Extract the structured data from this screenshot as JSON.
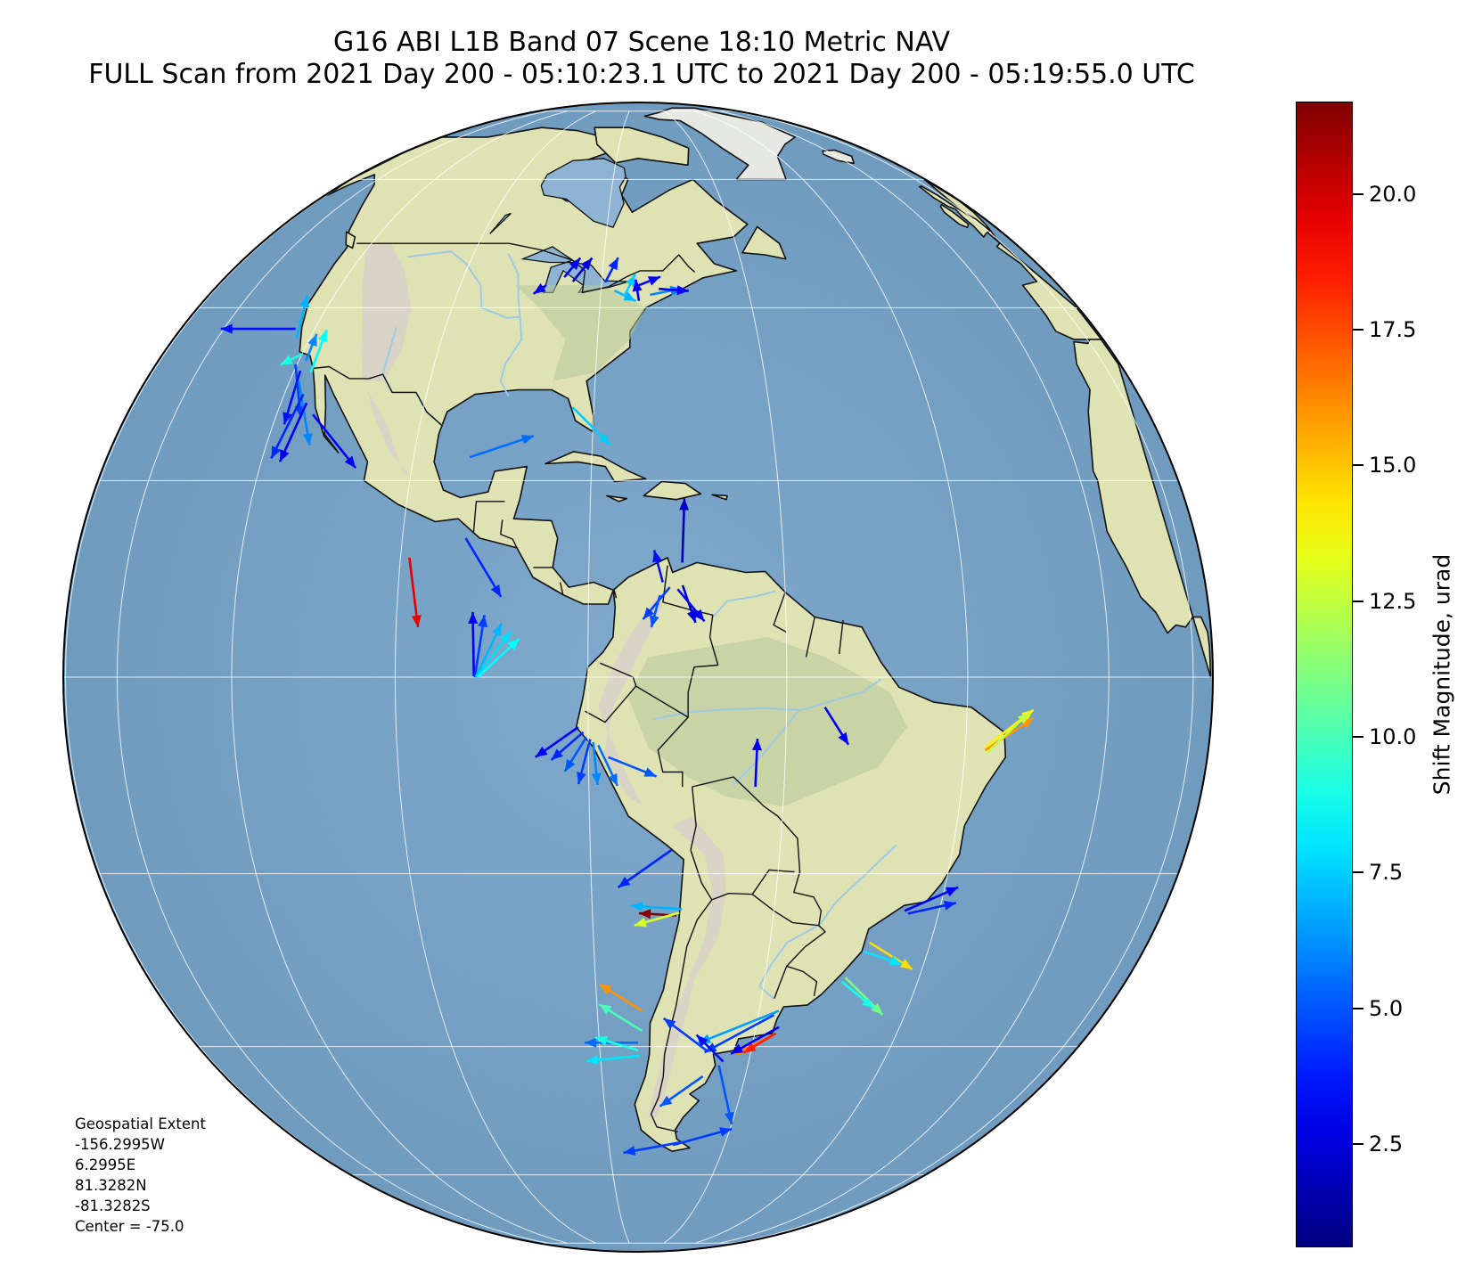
{
  "title": {
    "line1": "G16 ABI L1B Band 07 Scene 18:10 Metric NAV",
    "line2": "FULL Scan from 2021 Day 200 - 05:10:23.1 UTC to 2021 Day 200 - 05:19:55.0 UTC"
  },
  "extent_note": {
    "heading": "Geospatial Extent",
    "west": "-156.2995W",
    "east": "6.2995E",
    "north": "81.3282N",
    "south": "-81.3282S",
    "center": "Center = -75.0"
  },
  "colorbar": {
    "label": "Shift Magnitude, urad",
    "min": 0.6,
    "max": 21.7,
    "colormap": "jet",
    "ticks": [
      {
        "value": 2.5,
        "label": "2.5"
      },
      {
        "value": 5.0,
        "label": "5.0"
      },
      {
        "value": 7.5,
        "label": "7.5"
      },
      {
        "value": 10.0,
        "label": "10.0"
      },
      {
        "value": 12.5,
        "label": "12.5"
      },
      {
        "value": 15.0,
        "label": "15.0"
      },
      {
        "value": 17.5,
        "label": "17.5"
      },
      {
        "value": 20.0,
        "label": "20.0"
      }
    ]
  },
  "colors": {
    "ocean": "#7aa5c9",
    "land": "#dfe3b4",
    "land_green": "#b7c99a",
    "mountain": "#d9d1c9",
    "border": "#111111",
    "river": "#9fc9e6",
    "grid": "#ffffff"
  },
  "projection": {
    "type": "geostationary",
    "satellite": "G16",
    "central_longitude": -75.0
  },
  "vectors": [
    {
      "lon": -87.6,
      "lat": 43.0,
      "dx": -1.2,
      "dy": -0.8,
      "mag": 3.0
    },
    {
      "lon": -85.3,
      "lat": 44.1,
      "dx": 1.5,
      "dy": 1.8,
      "mag": 3.0
    },
    {
      "lon": -84.0,
      "lat": 43.5,
      "dx": 1.8,
      "dy": 2.2,
      "mag": 2.5
    },
    {
      "lon": -79.5,
      "lat": 43.4,
      "dx": 1.2,
      "dy": 2.3,
      "mag": 4.0
    },
    {
      "lon": -78.2,
      "lat": 42.3,
      "dx": 2.0,
      "dy": -1.0,
      "mag": 7.0
    },
    {
      "lon": -75.6,
      "lat": 42.7,
      "dx": 2.5,
      "dy": 1.0,
      "mag": 3.0
    },
    {
      "lon": -76.8,
      "lat": 41.6,
      "dx": 1.0,
      "dy": 2.0,
      "mag": 7.5
    },
    {
      "lon": -74.9,
      "lat": 40.9,
      "dx": -0.3,
      "dy": 2.0,
      "mag": 3.0
    },
    {
      "lon": -73.4,
      "lat": 41.7,
      "dx": 3.0,
      "dy": 0.6,
      "mag": 6.0
    },
    {
      "lon": -72.2,
      "lat": 42.5,
      "dx": 2.8,
      "dy": -0.2,
      "mag": 3.0
    },
    {
      "lon": -123.5,
      "lat": 37.3,
      "dx": -7.0,
      "dy": 0.0,
      "mag": 3.5
    },
    {
      "lon": -122.4,
      "lat": 36.2,
      "dx": 1.0,
      "dy": 4.0,
      "mag": 7.0
    },
    {
      "lon": -120.0,
      "lat": 34.2,
      "dx": -2.0,
      "dy": -1.0,
      "mag": 9.0
    },
    {
      "lon": -118.8,
      "lat": 33.4,
      "dx": 1.0,
      "dy": 2.5,
      "mag": 6.0
    },
    {
      "lon": -120.3,
      "lat": 33.0,
      "dx": 0.5,
      "dy": -5.0,
      "mag": 4.5
    },
    {
      "lon": -119.0,
      "lat": 32.2,
      "dx": -1.5,
      "dy": -5.0,
      "mag": 3.5
    },
    {
      "lon": -117.2,
      "lat": 32.0,
      "dx": 1.5,
      "dy": 4.0,
      "mag": 8.5
    },
    {
      "lon": -118.5,
      "lat": 31.0,
      "dx": 1.0,
      "dy": -6.0,
      "mag": 6.0
    },
    {
      "lon": -117.0,
      "lat": 29.5,
      "dx": -3.0,
      "dy": -6.0,
      "mag": 4.0
    },
    {
      "lon": -116.0,
      "lat": 28.5,
      "dx": -2.5,
      "dy": -5.5,
      "mag": 3.0
    },
    {
      "lon": -114.5,
      "lat": 27.2,
      "dx": 4.0,
      "dy": -5.0,
      "mag": 3.0
    },
    {
      "lon": -93.5,
      "lat": 22.5,
      "dx": 6.0,
      "dy": 2.0,
      "mag": 5.5
    },
    {
      "lon": -82.4,
      "lat": 28.0,
      "dx": 3.5,
      "dy": -3.5,
      "mag": 7.5
    },
    {
      "lon": -99.0,
      "lat": 12.0,
      "dx": 0.8,
      "dy": -6.5,
      "mag": 19.5
    },
    {
      "lon": -93.0,
      "lat": 14.0,
      "dx": 3.3,
      "dy": -5.5,
      "mag": 4.0
    },
    {
      "lon": -70.5,
      "lat": 11.5,
      "dx": 0.2,
      "dy": 6.0,
      "mag": 2.0
    },
    {
      "lon": -72.5,
      "lat": 9.5,
      "dx": -0.8,
      "dy": 3.0,
      "mag": 3.5
    },
    {
      "lon": -71.8,
      "lat": 9.0,
      "dx": -2.5,
      "dy": -3.0,
      "mag": 4.5
    },
    {
      "lon": -71.0,
      "lat": 8.8,
      "dx": 2.5,
      "dy": -3.0,
      "mag": 3.0
    },
    {
      "lon": -70.5,
      "lat": 9.2,
      "dx": 1.2,
      "dy": -3.5,
      "mag": 2.5
    },
    {
      "lon": -72.8,
      "lat": 8.2,
      "dx": -0.8,
      "dy": -3.0,
      "mag": 5.0
    },
    {
      "lon": -91.6,
      "lat": 0.1,
      "dx": -0.1,
      "dy": 6.0,
      "mag": 3.0
    },
    {
      "lon": -91.5,
      "lat": 0.0,
      "dx": 0.9,
      "dy": 5.8,
      "mag": 4.5
    },
    {
      "lon": -91.4,
      "lat": 0.0,
      "dx": 2.4,
      "dy": 5.0,
      "mag": 7.0
    },
    {
      "lon": -91.3,
      "lat": 0.1,
      "dx": 3.2,
      "dy": 4.2,
      "mag": 7.8
    },
    {
      "lon": -91.2,
      "lat": 0.0,
      "dx": 3.9,
      "dy": 3.6,
      "mag": 8.5
    },
    {
      "lon": -81.0,
      "lat": -5.0,
      "dx": -4.0,
      "dy": -2.8,
      "mag": 3.0
    },
    {
      "lon": -80.5,
      "lat": -5.5,
      "dx": -3.0,
      "dy": -2.6,
      "mag": 4.0
    },
    {
      "lon": -80.2,
      "lat": -6.0,
      "dx": -2.0,
      "dy": -3.2,
      "mag": 5.0
    },
    {
      "lon": -79.8,
      "lat": -6.2,
      "dx": -1.1,
      "dy": -4.2,
      "mag": 4.5
    },
    {
      "lon": -79.5,
      "lat": -6.5,
      "dx": 0.4,
      "dy": -4.0,
      "mag": 6.0
    },
    {
      "lon": -79.0,
      "lat": -6.8,
      "dx": 1.8,
      "dy": -3.8,
      "mag": 5.5
    },
    {
      "lon": -78.0,
      "lat": -8.0,
      "dx": 4.5,
      "dy": -1.8,
      "mag": 5.0
    },
    {
      "lon": -56.0,
      "lat": -3.0,
      "dx": 2.2,
      "dy": -3.5,
      "mag": 3.0
    },
    {
      "lon": -63.0,
      "lat": -11.0,
      "dx": 0.2,
      "dy": 4.5,
      "mag": 3.0
    },
    {
      "lon": -71.5,
      "lat": -17.5,
      "dx": -5.0,
      "dy": -3.5,
      "mag": 4.0
    },
    {
      "lon": -70.8,
      "lat": -24.5,
      "dx": -3.5,
      "dy": 0.2,
      "mag": 21.5
    },
    {
      "lon": -70.5,
      "lat": -24.2,
      "dx": -4.2,
      "dy": -1.2,
      "mag": 13.0
    },
    {
      "lon": -70.2,
      "lat": -23.8,
      "dx": -4.8,
      "dy": 0.3,
      "mag": 7.0
    },
    {
      "lon": -37.5,
      "lat": -7.0,
      "dx": 4.5,
      "dy": 3.5,
      "mag": 14.0
    },
    {
      "lon": -37.5,
      "lat": -7.3,
      "dx": 4.5,
      "dy": 3.0,
      "mag": 16.0
    },
    {
      "lon": -37.3,
      "lat": -7.6,
      "dx": 4.0,
      "dy": 3.8,
      "mag": 12.5
    },
    {
      "lon": -44.5,
      "lat": -24.0,
      "dx": 5.0,
      "dy": 2.2,
      "mag": 3.0
    },
    {
      "lon": -44.0,
      "lat": -24.3,
      "dx": 4.5,
      "dy": 1.0,
      "mag": 4.0
    },
    {
      "lon": -48.0,
      "lat": -27.5,
      "dx": 4.0,
      "dy": -2.5,
      "mag": 14.5
    },
    {
      "lon": -48.5,
      "lat": -28.5,
      "dx": 3.6,
      "dy": -1.2,
      "mag": 8.0
    },
    {
      "lon": -50.0,
      "lat": -31.5,
      "dx": 3.5,
      "dy": -3.5,
      "mag": 11.0
    },
    {
      "lon": -50.3,
      "lat": -32.0,
      "dx": 3.0,
      "dy": -2.5,
      "mag": 9.0
    },
    {
      "lon": -74.5,
      "lat": -35.5,
      "dx": -4.0,
      "dy": 2.5,
      "mag": 16.0
    },
    {
      "lon": -74.5,
      "lat": -38.0,
      "dx": -4.0,
      "dy": 2.5,
      "mag": 10.0
    },
    {
      "lon": -75.0,
      "lat": -39.5,
      "dx": -5.0,
      "dy": 0.0,
      "mag": 5.5
    },
    {
      "lon": -75.0,
      "lat": -40.5,
      "dx": -4.0,
      "dy": 1.2,
      "mag": 9.0
    },
    {
      "lon": -74.8,
      "lat": -41.2,
      "dx": -5.0,
      "dy": -0.5,
      "mag": 8.0
    },
    {
      "lon": -57.5,
      "lat": -38.5,
      "dx": -3.5,
      "dy": -1.8,
      "mag": 16.5
    },
    {
      "lon": -57.2,
      "lat": -38.3,
      "dx": -3.0,
      "dy": -1.8,
      "mag": 18.5
    },
    {
      "lon": -57.0,
      "lat": -37.5,
      "dx": -4.5,
      "dy": -2.5,
      "mag": 3.0
    },
    {
      "lon": -58.0,
      "lat": -36.0,
      "dx": -6.5,
      "dy": -3.5,
      "mag": 4.5
    },
    {
      "lon": -57.5,
      "lat": -35.5,
      "dx": -7.5,
      "dy": -3.0,
      "mag": 6.5
    },
    {
      "lon": -63.5,
      "lat": -42.0,
      "dx": -2.5,
      "dy": 2.5,
      "mag": 3.5
    },
    {
      "lon": -66.0,
      "lat": -40.5,
      "dx": -4.0,
      "dy": 3.0,
      "mag": 4.5
    },
    {
      "lon": -66.0,
      "lat": -44.0,
      "dx": -4.0,
      "dy": -2.8,
      "mag": 5.0
    },
    {
      "lon": -64.0,
      "lat": -42.5,
      "dx": 1.2,
      "dy": -5.5,
      "mag": 5.0
    },
    {
      "lon": -67.5,
      "lat": -54.0,
      "dx": -5.5,
      "dy": -1.0,
      "mag": 4.5
    },
    {
      "lon": -69.0,
      "lat": -54.5,
      "dx": 5.5,
      "dy": 1.5,
      "mag": 4.5
    }
  ]
}
